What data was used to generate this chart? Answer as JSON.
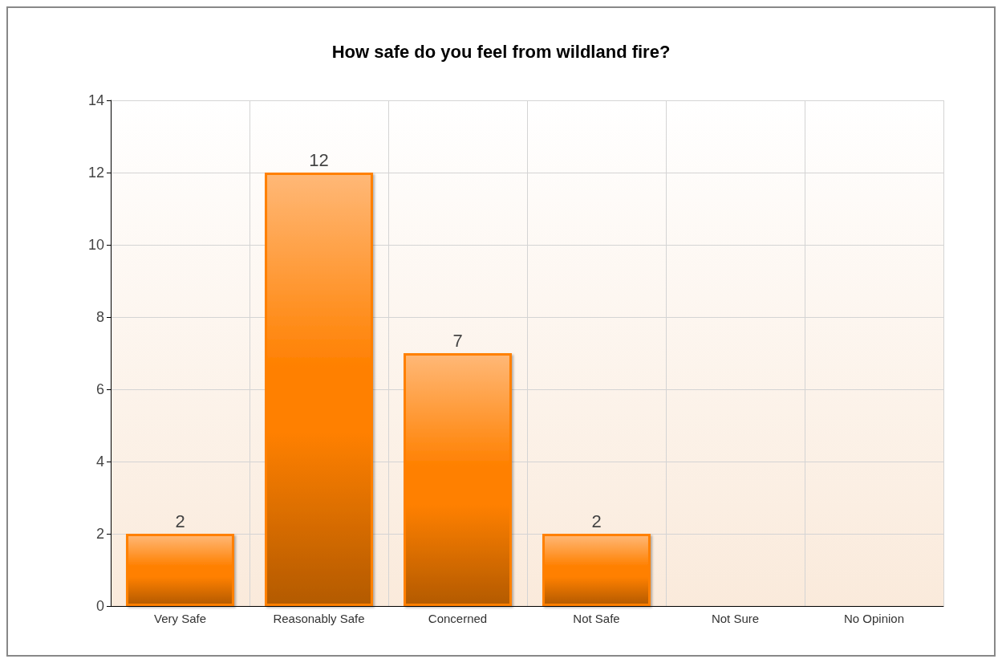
{
  "chart_data": {
    "type": "bar",
    "title": "How safe do you feel from wildland fire?",
    "categories": [
      "Very Safe",
      "Reasonably Safe",
      "Concerned",
      "Not Safe",
      "Not Sure",
      "No Opinion"
    ],
    "values": [
      2,
      12,
      7,
      2,
      0,
      0
    ],
    "value_labels": [
      "2",
      "12",
      "7",
      "2",
      null,
      null
    ],
    "color": "#ff8000",
    "ylim": [
      0,
      14
    ],
    "yticks": [
      0,
      2,
      4,
      6,
      8,
      10,
      12,
      14
    ],
    "grid": true
  }
}
